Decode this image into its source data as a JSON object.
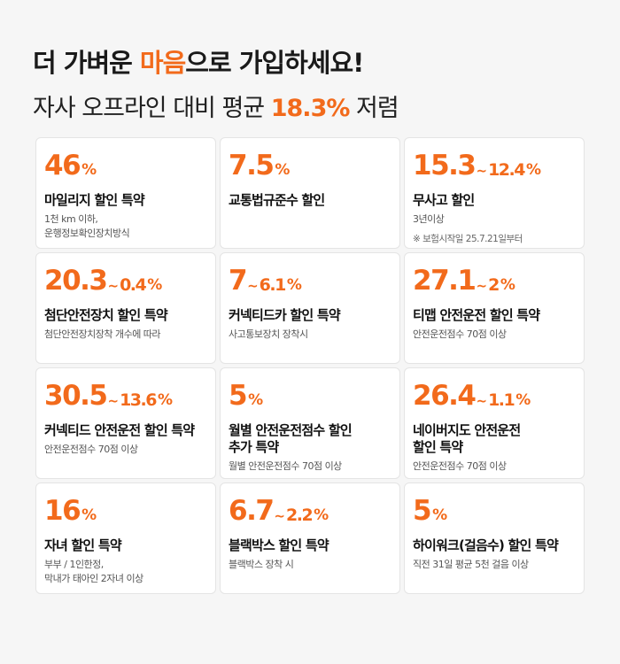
{
  "headline": {
    "pre": "더 가벼운 ",
    "accent": "마음",
    "post": "으로 가입하세요!"
  },
  "subline": {
    "pre": "자사 오프라인 대비 평균 ",
    "accent": "18.3%",
    "post": " 저렴"
  },
  "cards": [
    {
      "rate_main": "46",
      "rate_range": "",
      "pct": "%",
      "title": [
        "마일리지 할인 특약"
      ],
      "desc": [
        "1천 km 이하,",
        "운행정보확인장치방식"
      ],
      "note": ""
    },
    {
      "rate_main": "7.5",
      "rate_range": "",
      "pct": "%",
      "title": [
        "교통법규준수 할인"
      ],
      "desc": [],
      "note": ""
    },
    {
      "rate_main": "15.3",
      "rate_range": "12.4",
      "pct": "%",
      "title": [
        "무사고 할인"
      ],
      "desc": [
        "3년이상"
      ],
      "note": "※ 보험시작일 25.7.21일부터"
    },
    {
      "rate_main": "20.3",
      "rate_range": "0.4",
      "pct": "%",
      "title": [
        "첨단안전장치 할인 특약"
      ],
      "desc": [
        "첨단안전장치장착 개수에 따라"
      ],
      "note": ""
    },
    {
      "rate_main": "7",
      "rate_range": "6.1",
      "pct": "%",
      "title": [
        "커넥티드카 할인 특약"
      ],
      "desc": [
        "사고통보장치 장착시"
      ],
      "note": ""
    },
    {
      "rate_main": "27.1",
      "rate_range": "2",
      "pct": "%",
      "title": [
        "티맵 안전운전 할인 특약"
      ],
      "desc": [
        "안전운전점수 70점 이상"
      ],
      "note": ""
    },
    {
      "rate_main": "30.5",
      "rate_range": "13.6",
      "pct": "%",
      "title": [
        "커넥티드 안전운전 할인 특약"
      ],
      "desc": [
        "안전운전점수 70점 이상"
      ],
      "note": ""
    },
    {
      "rate_main": "5",
      "rate_range": "",
      "pct": "%",
      "title": [
        "월별 안전운전점수 할인",
        "추가 특약"
      ],
      "desc": [
        "월별 안전운전점수 70점 이상"
      ],
      "note": ""
    },
    {
      "rate_main": "26.4",
      "rate_range": "1.1",
      "pct": "%",
      "title": [
        "네이버지도 안전운전",
        "할인 특약"
      ],
      "desc": [
        "안전운전점수 70점 이상"
      ],
      "note": ""
    },
    {
      "rate_main": "16",
      "rate_range": "",
      "pct": "%",
      "title": [
        "자녀 할인 특약"
      ],
      "desc": [
        "부부 / 1인한정,",
        "막내가 태아인 2자녀 이상"
      ],
      "note": ""
    },
    {
      "rate_main": "6.7",
      "rate_range": "2.2",
      "pct": "%",
      "title": [
        "블랙박스 할인 특약"
      ],
      "desc": [
        "블랙박스 장착 시"
      ],
      "note": ""
    },
    {
      "rate_main": "5",
      "rate_range": "",
      "pct": "%",
      "title": [
        "하이워크(걸음수) 할인 특약"
      ],
      "desc": [
        "직전 31일 평균 5천 걸음 이상"
      ],
      "note": ""
    }
  ],
  "colors": {
    "accent": "#f26a1b",
    "background": "#f6f6f6",
    "card": "#ffffff"
  },
  "icons": {
    "range_separator": "~"
  }
}
